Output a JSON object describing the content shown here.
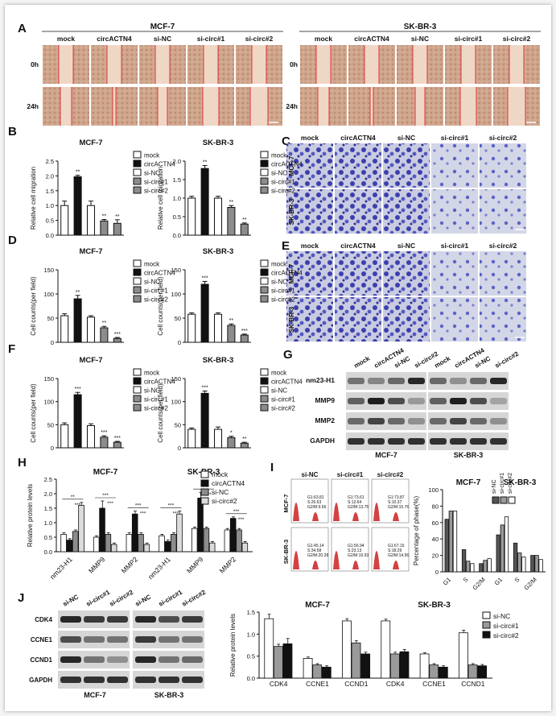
{
  "panels": {
    "A": {
      "letter": "A",
      "left_title": "MCF-7",
      "right_title": "SK-BR-3",
      "col_labels": [
        "mock",
        "circACTN4",
        "si-NC",
        "si-circ#1",
        "si-circ#2"
      ],
      "row_labels": [
        "0h",
        "24h"
      ]
    },
    "C": {
      "letter": "C",
      "col_labels": [
        "mock",
        "circACTN4",
        "si-NC",
        "si-circ#1",
        "si-circ#2"
      ],
      "row_labels": [
        "MCF-7",
        "SK-BR-3"
      ]
    },
    "E": {
      "letter": "E",
      "col_labels": [
        "mock",
        "circACTN4",
        "si-NC",
        "si-circ#1",
        "si-circ#2"
      ],
      "row_labels": [
        "MCF-7",
        "SK-BR-3"
      ]
    },
    "G": {
      "letter": "G",
      "lane_labels": [
        "mock",
        "circACTN4",
        "si-NC",
        "si-circ#2",
        "mock",
        "circACTN4",
        "si-NC",
        "si-circ#2"
      ],
      "row_labels": [
        "nm23-H1",
        "MMP9",
        "MMP2",
        "GAPDH"
      ],
      "bottom_labels": [
        "MCF-7",
        "SK-BR-3"
      ]
    },
    "I": {
      "letter": "I",
      "flow_col_labels": [
        "si-NC",
        "si-circ#1",
        "si-circ#2"
      ],
      "flow_row_labels": [
        "MCF-7",
        "SK-BR-3"
      ],
      "flow_stats": [
        [
          "G1:63.81",
          "S:26.63",
          "G2/M:9.56"
        ],
        [
          "G1:73.61",
          "S:12.64",
          "G2/M:13.75"
        ],
        [
          "G1:73.87",
          "S:10.37",
          "G2/M:15.76"
        ],
        [
          "G1:45.14",
          "S:34.58",
          "G2/M:20.28"
        ],
        [
          "G1:56.94",
          "S:23.13",
          "G2/M:19.93"
        ],
        [
          "G1:67.15",
          "S:18.29",
          "G2/M:14.56"
        ]
      ]
    },
    "J": {
      "letter": "J",
      "lane_labels": [
        "si-NC",
        "si-circ#1",
        "si-circ#2",
        "si-NC",
        "si-circ#1",
        "si-circ#2"
      ],
      "row_labels": [
        "CDK4",
        "CCNE1",
        "CCND1",
        "GAPDH"
      ],
      "bottom_labels": [
        "MCF-7",
        "SK-BR-3"
      ]
    }
  },
  "colors": {
    "black": "#111111",
    "grey": "#8c8c8c",
    "white": "#ffffff",
    "stain": "#3a3fb0",
    "wound": "#d9b49a",
    "edge": "#e0353a",
    "flow": "#cc2020"
  },
  "chart_data": [
    {
      "id": "B-MCF-7",
      "type": "bar",
      "letter": "B",
      "title": "MCF-7",
      "ylabel": "Relative cell migration",
      "ylim": [
        0,
        2.5
      ],
      "ticks": [
        "0.0",
        "0.5",
        "1.0",
        "1.5",
        "2.0",
        "2.5"
      ],
      "categories": [
        "mock",
        "circACTN4",
        "si-NC",
        "si-circ#1",
        "si-circ#2"
      ],
      "values": [
        1.0,
        1.97,
        1.0,
        0.48,
        0.4
      ],
      "errors": [
        0.15,
        0.05,
        0.15,
        0.05,
        0.12
      ],
      "sig": [
        "",
        "**",
        "",
        "**",
        "**"
      ],
      "legend": [
        "mock",
        "circACTN4",
        "si-NC",
        "si-circ#1",
        "si-circ#2"
      ]
    },
    {
      "id": "B-SK-BR-3",
      "type": "bar",
      "title": "SK-BR-3",
      "ylabel": "Relative cell migration",
      "ylim": [
        0,
        2.0
      ],
      "ticks": [
        "0.0",
        "0.5",
        "1.0",
        "1.5",
        "2.0"
      ],
      "categories": [
        "mock",
        "circACTN4",
        "si-NC",
        "si-circ#1",
        "si-circ#2"
      ],
      "values": [
        1.0,
        1.8,
        1.0,
        0.75,
        0.3
      ],
      "errors": [
        0.05,
        0.08,
        0.05,
        0.05,
        0.03
      ],
      "sig": [
        "",
        "**",
        "",
        "**",
        "**"
      ],
      "legend": [
        "mock",
        "circACTN4",
        "si-NC",
        "si-circ#1",
        "si-circ#2"
      ]
    },
    {
      "id": "D-MCF-7",
      "type": "bar",
      "letter": "D",
      "title": "MCF-7",
      "ylabel": "Cell counts(per field)",
      "ylim": [
        0,
        150
      ],
      "ticks": [
        "0",
        "50",
        "100",
        "150"
      ],
      "categories": [
        "mock",
        "circACTN4",
        "si-NC",
        "si-circ#1",
        "si-circ#2"
      ],
      "values": [
        55,
        90,
        52,
        30,
        8
      ],
      "errors": [
        4,
        7,
        3,
        3,
        2
      ],
      "sig": [
        "",
        "**",
        "",
        "**",
        "***"
      ],
      "legend": [
        "mock",
        "circACTN4",
        "si-NC",
        "si-circ#1",
        "si-circ#2"
      ]
    },
    {
      "id": "D-SK-BR-3",
      "type": "bar",
      "title": "SK-BR-3",
      "ylabel": "Cell counts(per field)",
      "ylim": [
        0,
        150
      ],
      "ticks": [
        "0",
        "50",
        "100",
        "150"
      ],
      "categories": [
        "mock",
        "circACTN4",
        "si-NC",
        "si-circ#1",
        "si-circ#2"
      ],
      "values": [
        58,
        120,
        58,
        35,
        15
      ],
      "errors": [
        3,
        6,
        3,
        3,
        2
      ],
      "sig": [
        "",
        "***",
        "",
        "**",
        "***"
      ],
      "legend": [
        "mock",
        "circACTN4",
        "si-NC",
        "si-circ#1",
        "si-circ#2"
      ]
    },
    {
      "id": "F-MCF-7",
      "type": "bar",
      "letter": "F",
      "title": "MCF-7",
      "ylabel": "Cell counts(per field)",
      "ylim": [
        0,
        150
      ],
      "ticks": [
        "0",
        "50",
        "100",
        "150"
      ],
      "categories": [
        "mock",
        "circACTN4",
        "si-NC",
        "si-circ#1",
        "si-circ#2"
      ],
      "values": [
        50,
        115,
        48,
        23,
        12
      ],
      "errors": [
        4,
        5,
        4,
        3,
        2
      ],
      "sig": [
        "",
        "***",
        "",
        "***",
        "***"
      ],
      "legend": [
        "mock",
        "circACTN4",
        "si-NC",
        "si-circ#1",
        "si-circ#2"
      ]
    },
    {
      "id": "F-SK-BR-3",
      "type": "bar",
      "title": "SK-BR-3",
      "ylabel": "Cell counts(per field)",
      "ylim": [
        0,
        150
      ],
      "ticks": [
        "0",
        "50",
        "100",
        "150"
      ],
      "categories": [
        "mock",
        "circACTN4",
        "si-NC",
        "si-circ#1",
        "si-circ#2"
      ],
      "values": [
        40,
        118,
        40,
        22,
        10
      ],
      "errors": [
        3,
        5,
        5,
        3,
        2
      ],
      "sig": [
        "",
        "***",
        "",
        "*",
        "**"
      ],
      "legend": [
        "mock",
        "circACTN4",
        "si-NC",
        "si-circ#1",
        "si-circ#2"
      ]
    },
    {
      "id": "H",
      "type": "bar",
      "letter": "H",
      "ylabel": "Relative protein levels",
      "ylim": [
        0,
        2.5
      ],
      "ticks": [
        "0.0",
        "0.5",
        "1.0",
        "1.5",
        "2.0",
        "2.5"
      ],
      "subtitles": [
        "MCF-7",
        "SK-BR-3"
      ],
      "categories": [
        "nm23-H1",
        "MMP9",
        "MMP2",
        "nm23-H1",
        "MMP9",
        "MMP2"
      ],
      "series": [
        {
          "name": "mock",
          "values": [
            0.6,
            0.5,
            0.6,
            0.55,
            0.8,
            0.75
          ],
          "errors": [
            0.05,
            0.05,
            0.05,
            0.05,
            0.05,
            0.05
          ]
        },
        {
          "name": "circACTN4",
          "values": [
            0.4,
            1.5,
            1.3,
            0.35,
            1.85,
            1.15
          ],
          "errors": [
            0.05,
            0.25,
            0.1,
            0.05,
            0.2,
            0.05
          ]
        },
        {
          "name": "si-NC",
          "values": [
            0.7,
            0.6,
            0.6,
            0.6,
            0.8,
            0.75
          ],
          "errors": [
            0.05,
            0.05,
            0.05,
            0.05,
            0.05,
            0.05
          ]
        },
        {
          "name": "si-circ#2",
          "values": [
            1.6,
            0.25,
            0.25,
            1.3,
            0.3,
            0.3
          ],
          "errors": [
            0.1,
            0.05,
            0.05,
            0.1,
            0.05,
            0.05
          ]
        }
      ],
      "sig_labels": [
        "**",
        "***",
        "***",
        "***",
        "***",
        "***",
        "***",
        "***",
        "***",
        "***",
        "***",
        "***"
      ]
    },
    {
      "id": "I-bars",
      "type": "bar",
      "ylabel": "Percentage of phase(%)",
      "ylim": [
        0,
        100
      ],
      "ticks": [
        "0",
        "20",
        "40",
        "60",
        "80",
        "100"
      ],
      "subtitles": [
        "MCF-7",
        "SK-BR-3"
      ],
      "categories": [
        "G1",
        "S",
        "G2/M",
        "G1",
        "S",
        "G2/M"
      ],
      "series": [
        {
          "name": "si-NC",
          "values": [
            64,
            27,
            10,
            45,
            35,
            20
          ]
        },
        {
          "name": "si-circ#1",
          "values": [
            74,
            13,
            14,
            57,
            23,
            20
          ]
        },
        {
          "name": "si-circ#2",
          "values": [
            74,
            10,
            16,
            67,
            18,
            15
          ]
        }
      ]
    },
    {
      "id": "J-bars",
      "type": "bar",
      "ylabel": "Relative protein levels",
      "ylim": [
        0,
        1.5
      ],
      "ticks": [
        "0.0",
        "0.5",
        "1.0",
        "1.5"
      ],
      "subtitles": [
        "MCF-7",
        "SK-BR-3"
      ],
      "categories": [
        "CDK4",
        "CCNE1",
        "CCND1",
        "CDK4",
        "CCNE1",
        "CCND1"
      ],
      "series": [
        {
          "name": "si-NC",
          "values": [
            1.35,
            0.45,
            1.3,
            1.3,
            0.55,
            1.03
          ],
          "errors": [
            0.1,
            0.03,
            0.05,
            0.04,
            0.03,
            0.06
          ]
        },
        {
          "name": "si-circ#1",
          "values": [
            0.72,
            0.3,
            0.8,
            0.55,
            0.3,
            0.3
          ],
          "errors": [
            0.05,
            0.03,
            0.05,
            0.04,
            0.03,
            0.03
          ]
        },
        {
          "name": "si-circ#2",
          "values": [
            0.78,
            0.25,
            0.55,
            0.6,
            0.25,
            0.28
          ],
          "errors": [
            0.12,
            0.03,
            0.04,
            0.05,
            0.03,
            0.03
          ]
        }
      ]
    }
  ]
}
